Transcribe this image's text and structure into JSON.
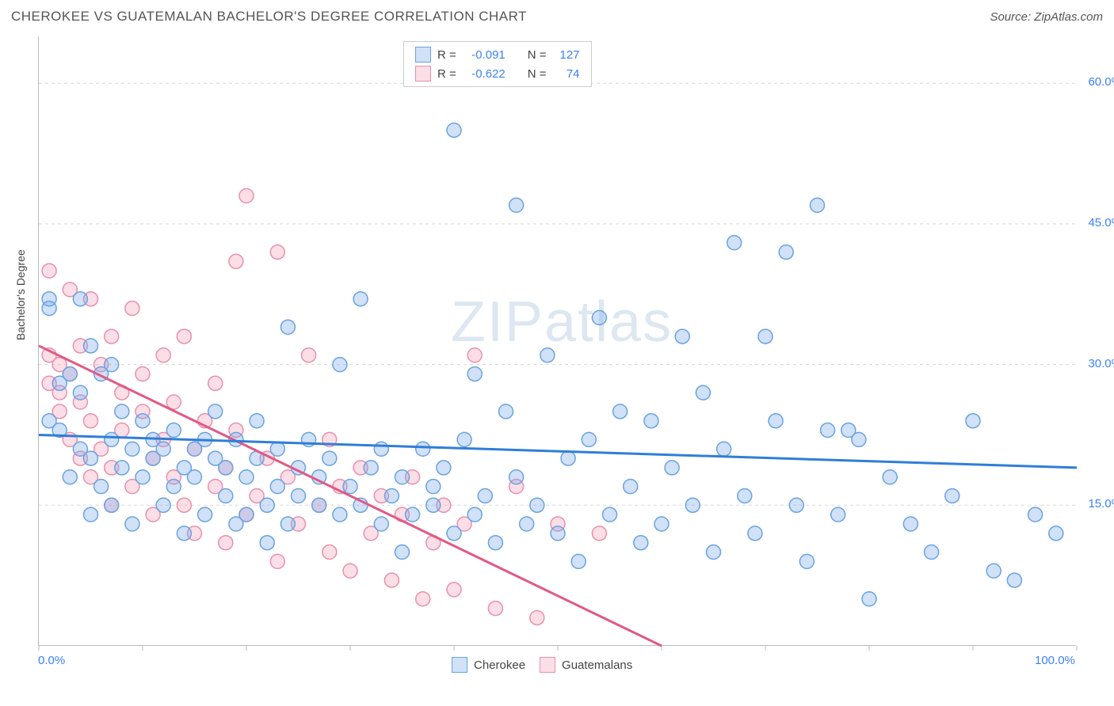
{
  "header": {
    "title": "CHEROKEE VS GUATEMALAN BACHELOR'S DEGREE CORRELATION CHART",
    "source": "Source: ZipAtlas.com"
  },
  "chart": {
    "type": "scatter",
    "ylabel": "Bachelor's Degree",
    "watermark": {
      "bold": "ZIP",
      "light": "atlas"
    },
    "xlim": [
      0,
      100
    ],
    "ylim": [
      0,
      65
    ],
    "ytick_labels": [
      "15.0%",
      "30.0%",
      "45.0%",
      "60.0%"
    ],
    "ytick_values": [
      15,
      30,
      45,
      60
    ],
    "xtick_labels_ends": [
      "0.0%",
      "100.0%"
    ],
    "xtick_values": [
      0,
      10,
      20,
      30,
      40,
      50,
      60,
      70,
      80,
      90,
      100
    ],
    "background_color": "#ffffff",
    "grid_color": "#d8d8d8",
    "axis_color": "#bbbbbb",
    "series": {
      "cherokee": {
        "label": "Cherokee",
        "fill": "rgba(120,170,235,0.35)",
        "stroke": "#6aa3e0",
        "line_color": "#2f7ed8",
        "marker_radius": 9,
        "line_width": 3,
        "regression": {
          "x1": 0,
          "y1": 22.5,
          "x2": 100,
          "y2": 19.0
        },
        "stats": {
          "R": "-0.091",
          "N": "127"
        },
        "points": [
          [
            1,
            37
          ],
          [
            1,
            36
          ],
          [
            1,
            24
          ],
          [
            2,
            23
          ],
          [
            2,
            28
          ],
          [
            3,
            29
          ],
          [
            3,
            18
          ],
          [
            4,
            37
          ],
          [
            4,
            21
          ],
          [
            4,
            27
          ],
          [
            5,
            32
          ],
          [
            5,
            20
          ],
          [
            5,
            14
          ],
          [
            6,
            29
          ],
          [
            6,
            17
          ],
          [
            7,
            30
          ],
          [
            7,
            22
          ],
          [
            7,
            15
          ],
          [
            8,
            19
          ],
          [
            8,
            25
          ],
          [
            9,
            21
          ],
          [
            9,
            13
          ],
          [
            10,
            24
          ],
          [
            10,
            18
          ],
          [
            11,
            20
          ],
          [
            11,
            22
          ],
          [
            12,
            21
          ],
          [
            12,
            15
          ],
          [
            13,
            17
          ],
          [
            13,
            23
          ],
          [
            14,
            19
          ],
          [
            14,
            12
          ],
          [
            15,
            21
          ],
          [
            15,
            18
          ],
          [
            16,
            22
          ],
          [
            16,
            14
          ],
          [
            17,
            20
          ],
          [
            17,
            25
          ],
          [
            18,
            16
          ],
          [
            18,
            19
          ],
          [
            19,
            13
          ],
          [
            19,
            22
          ],
          [
            20,
            18
          ],
          [
            20,
            14
          ],
          [
            21,
            20
          ],
          [
            21,
            24
          ],
          [
            22,
            15
          ],
          [
            22,
            11
          ],
          [
            23,
            17
          ],
          [
            23,
            21
          ],
          [
            24,
            34
          ],
          [
            24,
            13
          ],
          [
            25,
            16
          ],
          [
            25,
            19
          ],
          [
            26,
            22
          ],
          [
            27,
            15
          ],
          [
            27,
            18
          ],
          [
            28,
            20
          ],
          [
            29,
            14
          ],
          [
            29,
            30
          ],
          [
            30,
            17
          ],
          [
            31,
            37
          ],
          [
            31,
            15
          ],
          [
            32,
            19
          ],
          [
            33,
            13
          ],
          [
            33,
            21
          ],
          [
            34,
            16
          ],
          [
            35,
            18
          ],
          [
            35,
            10
          ],
          [
            36,
            14
          ],
          [
            37,
            21
          ],
          [
            38,
            15
          ],
          [
            38,
            17
          ],
          [
            39,
            19
          ],
          [
            40,
            55
          ],
          [
            40,
            12
          ],
          [
            41,
            22
          ],
          [
            42,
            14
          ],
          [
            42,
            29
          ],
          [
            43,
            16
          ],
          [
            44,
            11
          ],
          [
            45,
            25
          ],
          [
            46,
            47
          ],
          [
            46,
            18
          ],
          [
            47,
            13
          ],
          [
            48,
            15
          ],
          [
            49,
            31
          ],
          [
            50,
            12
          ],
          [
            51,
            20
          ],
          [
            52,
            9
          ],
          [
            53,
            22
          ],
          [
            54,
            35
          ],
          [
            55,
            14
          ],
          [
            56,
            25
          ],
          [
            57,
            17
          ],
          [
            58,
            11
          ],
          [
            59,
            24
          ],
          [
            60,
            13
          ],
          [
            61,
            19
          ],
          [
            62,
            33
          ],
          [
            63,
            15
          ],
          [
            64,
            27
          ],
          [
            65,
            10
          ],
          [
            66,
            21
          ],
          [
            67,
            43
          ],
          [
            68,
            16
          ],
          [
            69,
            12
          ],
          [
            70,
            33
          ],
          [
            71,
            24
          ],
          [
            72,
            42
          ],
          [
            73,
            15
          ],
          [
            74,
            9
          ],
          [
            75,
            47
          ],
          [
            76,
            23
          ],
          [
            77,
            14
          ],
          [
            78,
            23
          ],
          [
            79,
            22
          ],
          [
            80,
            5
          ],
          [
            82,
            18
          ],
          [
            84,
            13
          ],
          [
            86,
            10
          ],
          [
            88,
            16
          ],
          [
            90,
            24
          ],
          [
            92,
            8
          ],
          [
            94,
            7
          ],
          [
            96,
            14
          ],
          [
            98,
            12
          ]
        ]
      },
      "guatemalans": {
        "label": "Guatemalans",
        "fill": "rgba(245,160,185,0.35)",
        "stroke": "#e890ad",
        "line_color": "#e05a86",
        "marker_radius": 9,
        "line_width": 3,
        "regression": {
          "x1": 0,
          "y1": 32.0,
          "x2": 60,
          "y2": 0
        },
        "stats": {
          "R": "-0.622",
          "N": "74"
        },
        "points": [
          [
            1,
            40
          ],
          [
            1,
            31
          ],
          [
            1,
            28
          ],
          [
            2,
            30
          ],
          [
            2,
            27
          ],
          [
            2,
            25
          ],
          [
            3,
            38
          ],
          [
            3,
            29
          ],
          [
            3,
            22
          ],
          [
            4,
            32
          ],
          [
            4,
            26
          ],
          [
            4,
            20
          ],
          [
            5,
            37
          ],
          [
            5,
            24
          ],
          [
            5,
            18
          ],
          [
            6,
            30
          ],
          [
            6,
            21
          ],
          [
            7,
            33
          ],
          [
            7,
            19
          ],
          [
            7,
            15
          ],
          [
            8,
            27
          ],
          [
            8,
            23
          ],
          [
            9,
            36
          ],
          [
            9,
            17
          ],
          [
            10,
            25
          ],
          [
            10,
            29
          ],
          [
            11,
            20
          ],
          [
            11,
            14
          ],
          [
            12,
            31
          ],
          [
            12,
            22
          ],
          [
            13,
            18
          ],
          [
            13,
            26
          ],
          [
            14,
            15
          ],
          [
            14,
            33
          ],
          [
            15,
            21
          ],
          [
            15,
            12
          ],
          [
            16,
            24
          ],
          [
            17,
            17
          ],
          [
            17,
            28
          ],
          [
            18,
            19
          ],
          [
            18,
            11
          ],
          [
            19,
            41
          ],
          [
            19,
            23
          ],
          [
            20,
            48
          ],
          [
            20,
            14
          ],
          [
            21,
            16
          ],
          [
            22,
            20
          ],
          [
            23,
            9
          ],
          [
            23,
            42
          ],
          [
            24,
            18
          ],
          [
            25,
            13
          ],
          [
            26,
            31
          ],
          [
            27,
            15
          ],
          [
            28,
            10
          ],
          [
            28,
            22
          ],
          [
            29,
            17
          ],
          [
            30,
            8
          ],
          [
            31,
            19
          ],
          [
            32,
            12
          ],
          [
            33,
            16
          ],
          [
            34,
            7
          ],
          [
            35,
            14
          ],
          [
            36,
            18
          ],
          [
            37,
            5
          ],
          [
            38,
            11
          ],
          [
            39,
            15
          ],
          [
            40,
            6
          ],
          [
            41,
            13
          ],
          [
            42,
            31
          ],
          [
            44,
            4
          ],
          [
            46,
            17
          ],
          [
            48,
            3
          ],
          [
            50,
            13
          ],
          [
            54,
            12
          ]
        ]
      }
    }
  },
  "legend": {
    "top": {
      "rows": [
        {
          "series": "cherokee",
          "r_label": "R =",
          "n_label": "N ="
        },
        {
          "series": "guatemalans",
          "r_label": "R =",
          "n_label": "N ="
        }
      ]
    },
    "bottom": {
      "items": [
        {
          "series": "cherokee"
        },
        {
          "series": "guatemalans"
        }
      ]
    }
  }
}
